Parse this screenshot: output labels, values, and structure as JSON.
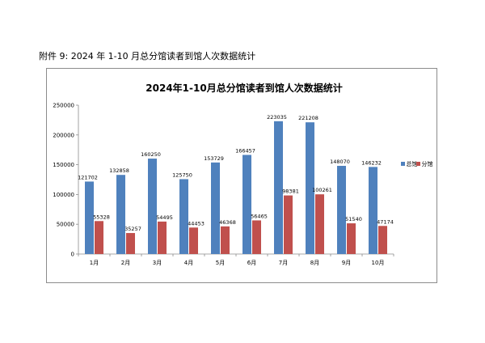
{
  "document": {
    "caption": "附件 9: 2024 年 1-10 月总分馆读者到馆人次数据统计"
  },
  "chart_data": {
    "type": "bar",
    "title": "2024年1-10月总分馆读者到馆人次数据统计",
    "categories": [
      "1月",
      "2月",
      "3月",
      "4月",
      "5月",
      "6月",
      "7月",
      "8月",
      "9月",
      "10月"
    ],
    "series": [
      {
        "name": "总馆",
        "color": "#4f81bd",
        "values": [
          121702,
          132858,
          160250,
          125750,
          153729,
          166457,
          223035,
          221208,
          148070,
          146232
        ]
      },
      {
        "name": "分馆",
        "color": "#c0504d",
        "values": [
          55328,
          35257,
          54495,
          44453,
          46368,
          56465,
          98381,
          100261,
          51540,
          47174
        ]
      }
    ],
    "ylim": [
      0,
      250000
    ],
    "yticks": [
      0,
      50000,
      100000,
      150000,
      200000,
      250000
    ],
    "grid": false,
    "legend_position": "right",
    "data_labels": true
  }
}
